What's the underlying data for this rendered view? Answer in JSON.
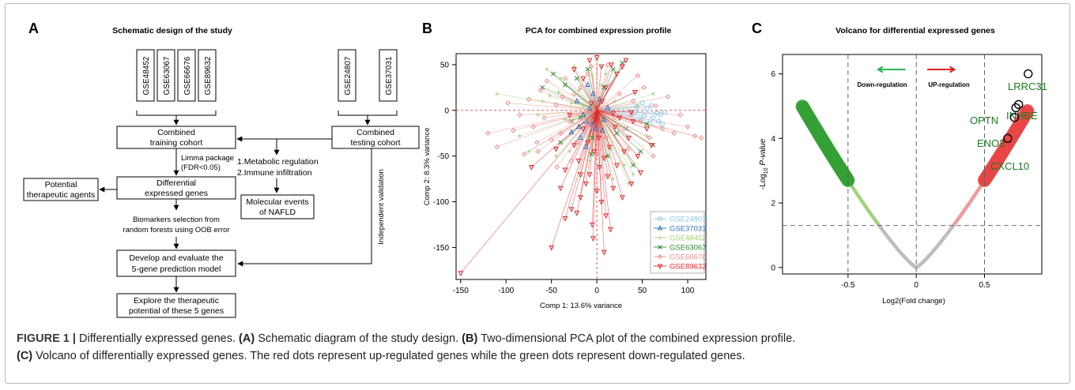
{
  "panel_a": {
    "letter": "A",
    "title": "Schematic design of the study",
    "training_datasets": [
      "GSE48452",
      "GSE63067",
      "GSE66676",
      "GSE89632"
    ],
    "testing_datasets": [
      "GSE24807",
      "GSE37031"
    ],
    "box_combined_training": [
      "Combined",
      "training cohort"
    ],
    "box_combined_testing": [
      "Combined",
      "testing cohort"
    ],
    "limma_note": [
      "Limma package",
      "(FDR<0.05)"
    ],
    "box_deg": [
      "Differential",
      "expressed genes"
    ],
    "box_agents": [
      "Potential",
      "therapeutic agents"
    ],
    "analysis_list": [
      "1.Metabolic regulation",
      "2.Immune infiltration"
    ],
    "box_molecular": [
      "Molecular events",
      "of NAFLD"
    ],
    "biomarker_note": [
      "Biomarkers selection from",
      "random forests using OOB error"
    ],
    "box_model": [
      "Develop and evaluate the",
      "5-gene prediction model"
    ],
    "box_explore": [
      "Explore the therapeutic",
      "potential of these 5 genes"
    ],
    "validation_label": "Independent validation"
  },
  "panel_b": {
    "letter": "B"
  },
  "panel_c": {
    "letter": "C"
  },
  "chart_data": [
    {
      "type": "scatter",
      "title": "PCA for combined expression profile",
      "xlabel": "Comp 1: 13.6% variance",
      "ylabel": "Comp 2: 8.3% variance",
      "xlim": [
        -155,
        120
      ],
      "ylim": [
        -185,
        62
      ],
      "xticks": [
        -150,
        -100,
        -50,
        0,
        50,
        100
      ],
      "yticks": [
        -150,
        -100,
        -50,
        0,
        50
      ],
      "reference_lines": {
        "x": 0,
        "y": 0,
        "color": "#e33b3b"
      },
      "legend_position": "bottom-right",
      "series": [
        {
          "name": "GSE24807",
          "color": "#8ec9e3",
          "marker": "circle",
          "points": [
            [
              70,
              -5
            ],
            [
              55,
              2
            ],
            [
              62,
              -8
            ],
            [
              72,
              -15
            ],
            [
              50,
              8
            ],
            [
              66,
              -3
            ],
            [
              48,
              -10
            ],
            [
              58,
              -14
            ],
            [
              75,
              -2
            ],
            [
              44,
              4
            ],
            [
              60,
              5
            ],
            [
              68,
              -12
            ],
            [
              52,
              -6
            ],
            [
              42,
              -2
            ]
          ]
        },
        {
          "name": "GSE37031",
          "color": "#2f72b8",
          "marker": "triangle-up",
          "points": [
            [
              -12,
              -12
            ],
            [
              -10,
              28
            ],
            [
              -20,
              -18
            ],
            [
              8,
              -10
            ],
            [
              -5,
              -15
            ],
            [
              -28,
              -24
            ],
            [
              -8,
              2
            ],
            [
              -15,
              -5
            ],
            [
              12,
              3
            ],
            [
              -2,
              -20
            ],
            [
              -4,
              18
            ],
            [
              -22,
              10
            ],
            [
              3,
              12
            ],
            [
              -18,
              -30
            ],
            [
              6,
              -22
            ],
            [
              -12,
              -40
            ]
          ]
        },
        {
          "name": "GSE48452",
          "color": "#a6cf7a",
          "marker": "plus",
          "points": [
            [
              -110,
              18
            ],
            [
              -85,
              -28
            ],
            [
              -60,
              10
            ],
            [
              -55,
              45
            ],
            [
              -52,
              16
            ],
            [
              -45,
              -50
            ],
            [
              -40,
              35
            ],
            [
              -30,
              -45
            ],
            [
              -25,
              48
            ],
            [
              -20,
              22
            ],
            [
              -15,
              5
            ],
            [
              -10,
              -30
            ],
            [
              -5,
              38
            ],
            [
              0,
              55
            ],
            [
              10,
              40
            ],
            [
              15,
              -42
            ],
            [
              20,
              10
            ],
            [
              25,
              -18
            ],
            [
              30,
              -60
            ],
            [
              35,
              -80
            ],
            [
              40,
              -70
            ],
            [
              45,
              5
            ],
            [
              55,
              -28
            ],
            [
              62,
              18
            ],
            [
              -35,
              -10
            ],
            [
              -65,
              -5
            ],
            [
              -75,
              -45
            ],
            [
              -42,
              20
            ],
            [
              -8,
              -55
            ],
            [
              18,
              -75
            ],
            [
              5,
              28
            ],
            [
              -28,
              8
            ]
          ]
        },
        {
          "name": "GSE63067",
          "color": "#2d8a2d",
          "marker": "x",
          "points": [
            [
              -48,
              40
            ],
            [
              -35,
              28
            ],
            [
              -22,
              35
            ],
            [
              -10,
              45
            ],
            [
              -18,
              -8
            ],
            [
              -5,
              -30
            ],
            [
              8,
              25
            ],
            [
              18,
              45
            ],
            [
              22,
              -25
            ],
            [
              32,
              -20
            ],
            [
              40,
              -60
            ],
            [
              48,
              -45
            ],
            [
              55,
              -15
            ],
            [
              62,
              -38
            ],
            [
              -28,
              -12
            ],
            [
              -40,
              -35
            ],
            [
              -60,
              25
            ],
            [
              12,
              -50
            ],
            [
              28,
              52
            ],
            [
              -6,
              -48
            ]
          ]
        },
        {
          "name": "GSE66676",
          "color": "#f08f8f",
          "marker": "diamond",
          "points": [
            [
              -120,
              -25
            ],
            [
              -110,
              -40
            ],
            [
              -98,
              8
            ],
            [
              -92,
              -22
            ],
            [
              -85,
              -5
            ],
            [
              -80,
              -48
            ],
            [
              -75,
              12
            ],
            [
              -70,
              -18
            ],
            [
              -65,
              -45
            ],
            [
              -62,
              22
            ],
            [
              -58,
              -8
            ],
            [
              -55,
              32
            ],
            [
              -50,
              -32
            ],
            [
              -45,
              6
            ],
            [
              -40,
              -25
            ],
            [
              -38,
              15
            ],
            [
              -35,
              35
            ],
            [
              -30,
              -12
            ],
            [
              -25,
              18
            ],
            [
              -22,
              -35
            ],
            [
              -18,
              25
            ],
            [
              -14,
              -10
            ],
            [
              -10,
              40
            ],
            [
              -5,
              -18
            ],
            [
              0,
              -48
            ],
            [
              5,
              12
            ],
            [
              10,
              -30
            ],
            [
              15,
              28
            ],
            [
              20,
              -8
            ],
            [
              25,
              18
            ],
            [
              30,
              -20
            ],
            [
              35,
              -42
            ],
            [
              40,
              10
            ],
            [
              48,
              -12
            ],
            [
              52,
              25
            ],
            [
              58,
              -30
            ],
            [
              65,
              5
            ],
            [
              72,
              -20
            ],
            [
              78,
              15
            ],
            [
              85,
              -25
            ],
            [
              92,
              -5
            ],
            [
              100,
              -18
            ],
            [
              108,
              -28
            ],
            [
              115,
              -30
            ],
            [
              -6,
              48
            ],
            [
              -28,
              -55
            ],
            [
              45,
              38
            ],
            [
              -66,
              -35
            ],
            [
              12,
              50
            ],
            [
              38,
              -5
            ],
            [
              -44,
              -62
            ],
            [
              62,
              -50
            ]
          ]
        },
        {
          "name": "GSE89632",
          "color": "#e0282a",
          "marker": "triangle-down",
          "points": [
            [
              -150,
              -178
            ],
            [
              -72,
              -62
            ],
            [
              -50,
              -150
            ],
            [
              -40,
              -85
            ],
            [
              -35,
              -118
            ],
            [
              -30,
              -5
            ],
            [
              -28,
              -108
            ],
            [
              -25,
              -38
            ],
            [
              -22,
              -112
            ],
            [
              -20,
              -55
            ],
            [
              -18,
              -95
            ],
            [
              -15,
              -20
            ],
            [
              -12,
              -80
            ],
            [
              -10,
              -35
            ],
            [
              -8,
              -70
            ],
            [
              -6,
              8
            ],
            [
              -5,
              -125
            ],
            [
              -3,
              -45
            ],
            [
              -2,
              -10
            ],
            [
              0,
              -88
            ],
            [
              0,
              58
            ],
            [
              2,
              -30
            ],
            [
              3,
              -62
            ],
            [
              5,
              -100
            ],
            [
              6,
              10
            ],
            [
              8,
              -52
            ],
            [
              10,
              -115
            ],
            [
              10,
              25
            ],
            [
              12,
              -72
            ],
            [
              14,
              -40
            ],
            [
              16,
              50
            ],
            [
              18,
              -85
            ],
            [
              20,
              -18
            ],
            [
              22,
              -60
            ],
            [
              25,
              -8
            ],
            [
              28,
              -95
            ],
            [
              30,
              -45
            ],
            [
              32,
              55
            ],
            [
              35,
              -30
            ],
            [
              38,
              -80
            ],
            [
              40,
              -12
            ],
            [
              42,
              20
            ],
            [
              45,
              -50
            ],
            [
              48,
              -68
            ],
            [
              22,
              40
            ],
            [
              -15,
              35
            ],
            [
              -25,
              45
            ],
            [
              5,
              48
            ],
            [
              -8,
              55
            ],
            [
              28,
              48
            ],
            [
              -4,
              -140
            ],
            [
              15,
              -130
            ],
            [
              8,
              -155
            ],
            [
              -18,
              -70
            ],
            [
              -35,
              -65
            ],
            [
              38,
              -2
            ],
            [
              55,
              -20
            ],
            [
              60,
              -38
            ],
            [
              -45,
              -42
            ],
            [
              18,
              -3
            ]
          ]
        }
      ]
    },
    {
      "type": "scatter",
      "title": "Volcano for differential expressed genes",
      "xlabel": "Log2(Fold change)",
      "ylabel": "-Log10 P-value",
      "xlim": [
        -0.98,
        0.92
      ],
      "ylim": [
        -0.2,
        6.6
      ],
      "xticks": [
        -0.5,
        0,
        0.5
      ],
      "yticks": [
        0,
        2,
        4,
        6
      ],
      "threshold_x": [
        -0.5,
        0.5
      ],
      "threshold_y": 1.3,
      "arrow_down_label": "Down-regulation",
      "arrow_up_label": "UP-regulation",
      "colors": {
        "down": "#35a035",
        "down_light": "#9fd47a",
        "up": "#e84646",
        "up_light": "#f39898",
        "nonsig": "#bdbdbd"
      },
      "curve": "y = 6.2 * |x|^1.2",
      "labeled_genes": [
        {
          "name": "LRRC31",
          "x": 0.82,
          "y": 6.0
        },
        {
          "name": "INHBE",
          "x": 0.75,
          "y": 5.05
        },
        {
          "name": "OPTN",
          "x": 0.73,
          "y": 4.95
        },
        {
          "name": "ENO3",
          "x": 0.72,
          "y": 4.65
        },
        {
          "name": "CXCL10",
          "x": 0.67,
          "y": 4.0
        }
      ]
    }
  ],
  "caption": {
    "label": "FIGURE 1 |",
    "lead": "Differentially expressed genes.",
    "a_tag": "(A)",
    "a_text": "Schematic diagram of the study design.",
    "b_tag": "(B)",
    "b_text": "Two-dimensional PCA plot of the combined expression profile.",
    "c_tag": "(C)",
    "c_text": "Volcano of differentially expressed genes. The red dots represent up-regulated genes while the green dots represent down-regulated genes."
  }
}
